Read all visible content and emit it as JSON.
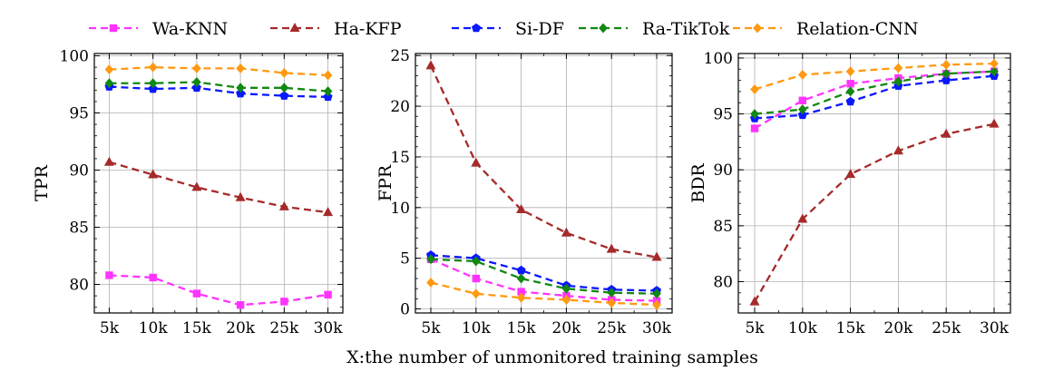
{
  "legend": [
    {
      "name": "Wa-KNN",
      "color": "#ff33ff",
      "marker": "square"
    },
    {
      "name": "Ha-KFP",
      "color": "#a52a2a",
      "marker": "triangle"
    },
    {
      "name": "Si-DF",
      "color": "#0a18ff",
      "marker": "pentagon"
    },
    {
      "name": "Ra-TikTok",
      "color": "#118811",
      "marker": "diamond"
    },
    {
      "name": "Relation-CNN",
      "color": "#ff9911",
      "marker": "diamond"
    }
  ],
  "xlabel": "X:the number of unmonitored training samples",
  "chart_data": [
    {
      "type": "line",
      "ylabel": "TPR",
      "categories": [
        "5k",
        "10k",
        "15k",
        "20k",
        "25k",
        "30k"
      ],
      "ylim": [
        77.5,
        100.2
      ],
      "yticks": [
        80,
        85,
        90,
        95,
        100
      ],
      "grid": true,
      "series": [
        {
          "name": "Wa-KNN",
          "values": [
            80.8,
            80.6,
            79.2,
            78.2,
            78.5,
            79.1
          ]
        },
        {
          "name": "Ha-KFP",
          "values": [
            90.7,
            89.6,
            88.5,
            87.6,
            86.8,
            86.3
          ]
        },
        {
          "name": "Si-DF",
          "values": [
            97.3,
            97.1,
            97.2,
            96.7,
            96.5,
            96.4
          ]
        },
        {
          "name": "Ra-TikTok",
          "values": [
            97.6,
            97.6,
            97.7,
            97.2,
            97.2,
            96.9
          ]
        },
        {
          "name": "Relation-CNN",
          "values": [
            98.8,
            99.0,
            98.9,
            98.9,
            98.5,
            98.3
          ]
        }
      ]
    },
    {
      "type": "line",
      "ylabel": "FPR",
      "categories": [
        "5k",
        "10k",
        "15k",
        "20k",
        "25k",
        "30k"
      ],
      "ylim": [
        -0.4,
        25.2
      ],
      "yticks": [
        0,
        5,
        10,
        15,
        20,
        25
      ],
      "grid": true,
      "series": [
        {
          "name": "Wa-KNN",
          "values": [
            4.9,
            3.0,
            1.7,
            1.3,
            0.9,
            0.8
          ]
        },
        {
          "name": "Ha-KFP",
          "values": [
            24.0,
            14.4,
            9.8,
            7.5,
            5.9,
            5.1
          ]
        },
        {
          "name": "Si-DF",
          "values": [
            5.3,
            5.0,
            3.8,
            2.3,
            1.9,
            1.8
          ]
        },
        {
          "name": "Ra-TikTok",
          "values": [
            4.9,
            4.7,
            3.0,
            2.0,
            1.6,
            1.5
          ]
        },
        {
          "name": "Relation-CNN",
          "values": [
            2.6,
            1.5,
            1.1,
            0.9,
            0.6,
            0.4
          ]
        }
      ]
    },
    {
      "type": "line",
      "ylabel": "BDR",
      "categories": [
        "5k",
        "10k",
        "15k",
        "20k",
        "25k",
        "30k"
      ],
      "ylim": [
        77.2,
        100.4
      ],
      "yticks": [
        80,
        85,
        90,
        95,
        100
      ],
      "grid": true,
      "series": [
        {
          "name": "Wa-KNN",
          "values": [
            93.7,
            96.2,
            97.7,
            98.2,
            98.6,
            98.8
          ]
        },
        {
          "name": "Ha-KFP",
          "values": [
            78.2,
            85.6,
            89.6,
            91.7,
            93.2,
            94.1
          ]
        },
        {
          "name": "Si-DF",
          "values": [
            94.6,
            94.9,
            96.1,
            97.5,
            98.0,
            98.4
          ]
        },
        {
          "name": "Ra-TikTok",
          "values": [
            95.0,
            95.4,
            97.0,
            97.9,
            98.6,
            98.8
          ]
        },
        {
          "name": "Relation-CNN",
          "values": [
            97.2,
            98.5,
            98.8,
            99.1,
            99.4,
            99.5
          ]
        }
      ]
    }
  ]
}
